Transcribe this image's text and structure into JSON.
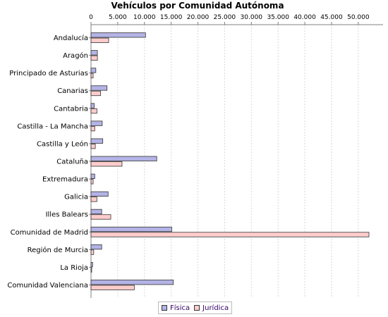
{
  "chart_data": {
    "type": "bar",
    "orientation": "horizontal",
    "title": "Vehículos por Comunidad Autónoma",
    "xlabel": "",
    "ylabel": "",
    "xlim": [
      0,
      52000
    ],
    "x_ticks": [
      "0",
      "5.000",
      "10.000",
      "15.000",
      "20.000",
      "25.000",
      "30.000",
      "35.000",
      "40.000",
      "45.000",
      "50.000"
    ],
    "x_tick_values": [
      0,
      5000,
      10000,
      15000,
      20000,
      25000,
      30000,
      35000,
      40000,
      45000,
      50000
    ],
    "x_axis_position": "top",
    "grid": true,
    "legend_position": "bottom",
    "categories": [
      "Andalucía",
      "Aragón",
      "Principado de Asturias",
      "Canarias",
      "Cantabria",
      "Castilla - La Mancha",
      "Castilla y León",
      "Cataluña",
      "Extremadura",
      "Galicia",
      "Illes Balears",
      "Comunidad de Madrid",
      "Región de Murcia",
      "La Rioja",
      "Comunidad Valenciana"
    ],
    "series": [
      {
        "name": "Física",
        "color": "#b3b3e6",
        "values": [
          10200,
          1200,
          900,
          3000,
          600,
          2100,
          2200,
          12300,
          700,
          3200,
          2000,
          15100,
          2000,
          300,
          15400
        ]
      },
      {
        "name": "Jurídica",
        "color": "#ffcccc",
        "values": [
          3300,
          1200,
          400,
          1800,
          1100,
          700,
          800,
          5800,
          400,
          1100,
          3700,
          52000,
          500,
          100,
          8100
        ]
      }
    ]
  }
}
